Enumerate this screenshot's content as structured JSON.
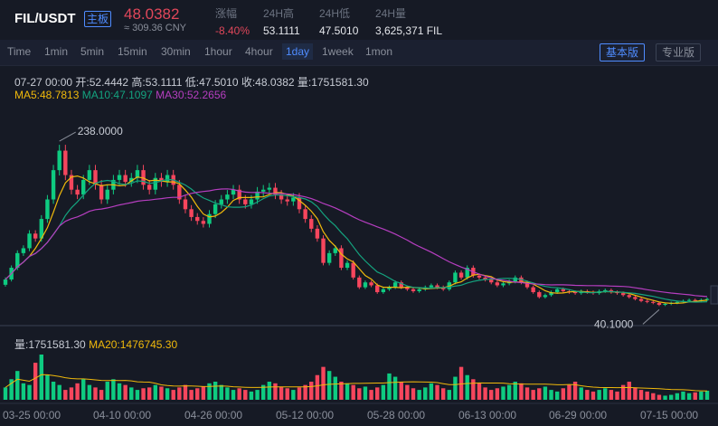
{
  "header": {
    "pair": "FIL/USDT",
    "badge": "主板",
    "price": "48.0382",
    "cny": "≈ 309.36 CNY",
    "stats": [
      {
        "label": "涨幅",
        "value": "-8.40%",
        "neg": true
      },
      {
        "label": "24H高",
        "value": "53.1111",
        "neg": false
      },
      {
        "label": "24H低",
        "value": "47.5010",
        "neg": false
      },
      {
        "label": "24H量",
        "value": "3,625,371 FIL",
        "neg": false
      }
    ]
  },
  "timeframes": [
    "Time",
    "1min",
    "5min",
    "15min",
    "30min",
    "1hour",
    "4hour",
    "1day",
    "1week",
    "1mon"
  ],
  "active_timeframe": "1day",
  "views": {
    "basic": "基本版",
    "pro": "专业版"
  },
  "info": "07-27 00:00   开:52.4442  高:53.1111  低:47.5010  收:48.0382  量:1751581.30",
  "ma": {
    "ma5": "MA5:48.7813",
    "ma10": "MA10:47.1097",
    "ma30": "MA30:52.2656"
  },
  "volume": {
    "label": "量:1751581.30",
    "ma20": "MA20:1476745.30"
  },
  "annotations": {
    "high": "238.0000",
    "low": "40.1000"
  },
  "colors": {
    "up": "#0ecb81",
    "down": "#f6465d",
    "ma5": "#f0b90b",
    "ma10": "#14a37f",
    "ma30": "#b63ec0",
    "accent": "#4f8cff"
  },
  "chart_data": {
    "type": "candlestick",
    "x_tick_labels": [
      "03-25 00:00",
      "04-10 00:00",
      "04-26 00:00",
      "05-12 00:00",
      "05-28 00:00",
      "06-13 00:00",
      "06-29 00:00",
      "07-15 00:00"
    ],
    "y_range_approx": [
      30,
      245
    ],
    "close_approx": [
      68,
      80,
      95,
      100,
      115,
      110,
      130,
      150,
      180,
      200,
      175,
      160,
      155,
      170,
      180,
      165,
      150,
      160,
      170,
      175,
      168,
      172,
      180,
      165,
      160,
      172,
      168,
      175,
      165,
      150,
      140,
      132,
      128,
      125,
      135,
      145,
      150,
      155,
      160,
      150,
      145,
      150,
      158,
      160,
      162,
      155,
      150,
      148,
      152,
      140,
      130,
      120,
      110,
      85,
      95,
      100,
      80,
      85,
      70,
      60,
      65,
      62,
      55,
      58,
      60,
      65,
      60,
      58,
      56,
      58,
      60,
      62,
      60,
      58,
      65,
      75,
      70,
      80,
      72,
      70,
      68,
      65,
      62,
      64,
      66,
      70,
      65,
      60,
      55,
      50,
      52,
      55,
      58,
      56,
      55,
      54,
      56,
      55,
      54,
      56,
      57,
      55,
      54,
      52,
      50,
      48,
      46,
      45,
      44,
      42,
      43,
      44,
      45,
      46,
      47,
      46,
      47,
      48
    ],
    "volume_approx": [
      15,
      25,
      35,
      20,
      18,
      45,
      55,
      30,
      22,
      18,
      12,
      15,
      20,
      25,
      18,
      15,
      12,
      22,
      25,
      20,
      18,
      15,
      12,
      14,
      15,
      18,
      16,
      14,
      12,
      15,
      18,
      12,
      14,
      16,
      20,
      22,
      18,
      15,
      12,
      14,
      12,
      10,
      12,
      18,
      22,
      20,
      16,
      14,
      12,
      15,
      18,
      22,
      30,
      40,
      35,
      28,
      22,
      20,
      18,
      14,
      16,
      12,
      15,
      18,
      32,
      28,
      22,
      18,
      14,
      12,
      15,
      20,
      18,
      14,
      12,
      28,
      40,
      30,
      25,
      20,
      15,
      12,
      14,
      16,
      18,
      22,
      20,
      15,
      12,
      14,
      16,
      12,
      10,
      14,
      18,
      22,
      15,
      12,
      10,
      12,
      14,
      12,
      10,
      18,
      22,
      15,
      12,
      10,
      8,
      6,
      5,
      6,
      8,
      10,
      8,
      9,
      10,
      11
    ],
    "annotations": [
      {
        "label": "238.0000",
        "type": "max"
      },
      {
        "label": "40.1000",
        "type": "min"
      }
    ]
  }
}
